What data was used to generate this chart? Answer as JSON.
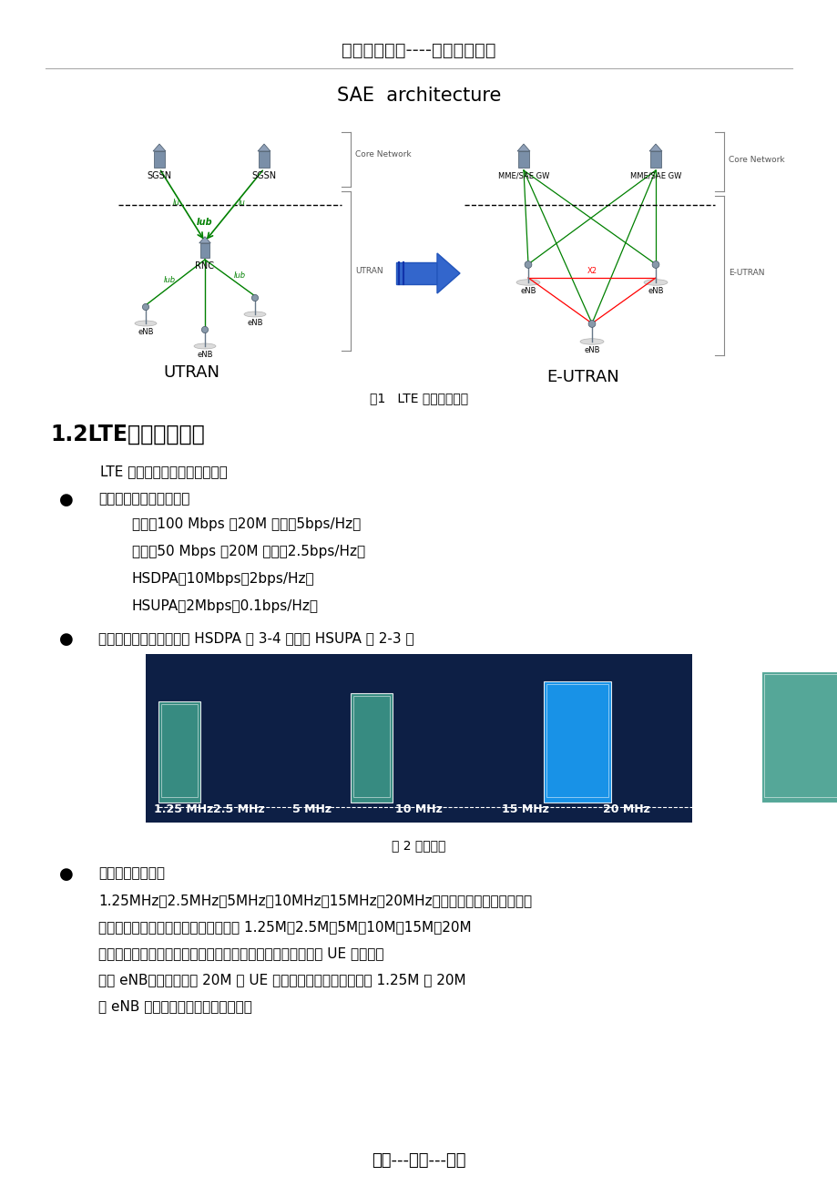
{
  "title_header": "精选优质文档----倾情为你奉上",
  "section_title": "SAE  architecture",
  "fig1_caption": "图1   LTE 无线网络结构",
  "section_heading": "1.2LTE主要技术特点",
  "intro_text": "LTE 有如下几个主要技术特点：",
  "bullet1_title": "显著提高峰值传输速率：",
  "bullet1_lines": [
    "下行：100 Mbps ，20M 带宽，5bps/Hz；",
    "上行：50 Mbps ，20M 带宽，2.5bps/Hz；",
    "HSDPA：10Mbps、2bps/Hz；",
    "HSUPA：2Mbps、0.1bps/Hz；"
  ],
  "bullet2_title": "显著提高频谱利用率，是 HSDPA 的 3-4 倍，是 HSUPA 的 2-3 倍",
  "fig2_caption": "图 2 带宽速率",
  "bullet3_title": "灵活可变的带宽：",
  "bullet3_lines": [
    "1.25MHz、2.5MHz、5MHz、10MHz、15MHz、20MHz；可变带宽设计；不同系列",
    "的基站设备其射频、基带部分要适应从 1.25M、2.5M、5M、10M、15M、20M",
    "的可变带宽，以满足运营商多样化需求。考虑不同带宽能力的 UE 和不同带",
    "宽的 eNB，如最大带宽 20M 的 UE 必须能够于一个可变带宽从 1.25M 到 20M",
    "的 eNB 进行无线连接；反之，也是："
  ],
  "footer_text": "专心---专注---专业",
  "bg_color": "#ffffff",
  "image_dark_bg": "#0d1f45",
  "image_teal": "#3d9b8a",
  "image_blue": "#1aa3ff",
  "bandwidth_labels": [
    "1.25 MHz",
    "2.5 MHz",
    "5 MHz",
    "10 MHz",
    "15 MHz",
    "20 MHz"
  ]
}
